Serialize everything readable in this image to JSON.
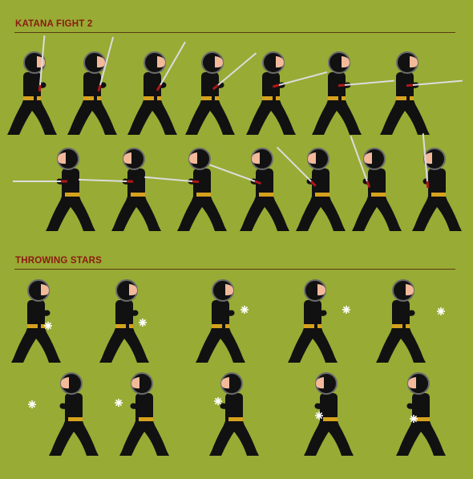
{
  "colors": {
    "background": "#98ab35",
    "title": "#8b1a10",
    "rule": "#5a3a10",
    "ninja_body": "#111111",
    "hood_outline": "#6b6b6b",
    "face": "#f2b99a",
    "belt": "#d6a21e",
    "blade": "#dcdcdc",
    "hilt": "#b01818",
    "star": "#ffffff"
  },
  "sections": [
    {
      "title": "KATANA FIGHT 2",
      "frames": 14
    },
    {
      "title": "THROWING STARS",
      "frames": 10
    }
  ]
}
